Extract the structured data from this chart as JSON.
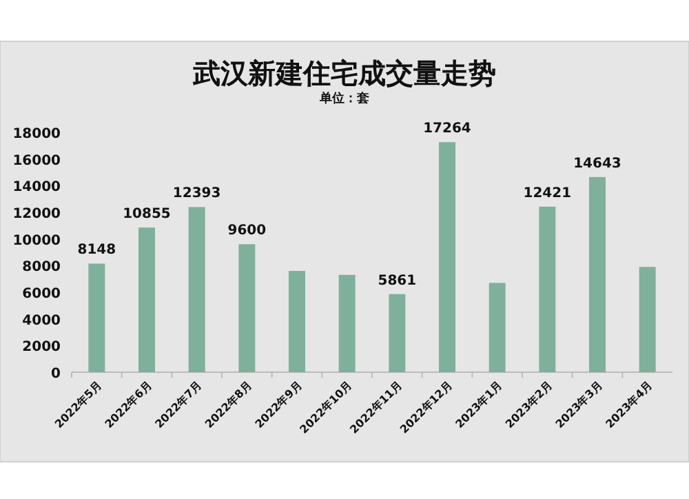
{
  "chart_data": {
    "type": "bar",
    "title": "武汉新建住宅成交量走势",
    "subtitle": "单位：套",
    "categories": [
      "2022年5月",
      "2022年6月",
      "2022年7月",
      "2022年8月",
      "2022年9月",
      "2022年10月",
      "2022年11月",
      "2022年12月",
      "2023年1月",
      "2023年2月",
      "2023年3月",
      "2023年4月"
    ],
    "values": [
      8148,
      10855,
      12393,
      9600,
      7600,
      7300,
      5861,
      17264,
      6700,
      12421,
      14643,
      7900
    ],
    "value_labels": [
      "8148",
      "10855",
      "12393",
      "9600",
      null,
      null,
      "5861",
      "17264",
      null,
      "12421",
      "14643",
      null
    ],
    "color": "#7fb09b",
    "ylim": [
      0,
      18000
    ],
    "yticks": [
      0,
      2000,
      4000,
      6000,
      8000,
      10000,
      12000,
      14000,
      16000,
      18000
    ],
    "grid": false
  }
}
